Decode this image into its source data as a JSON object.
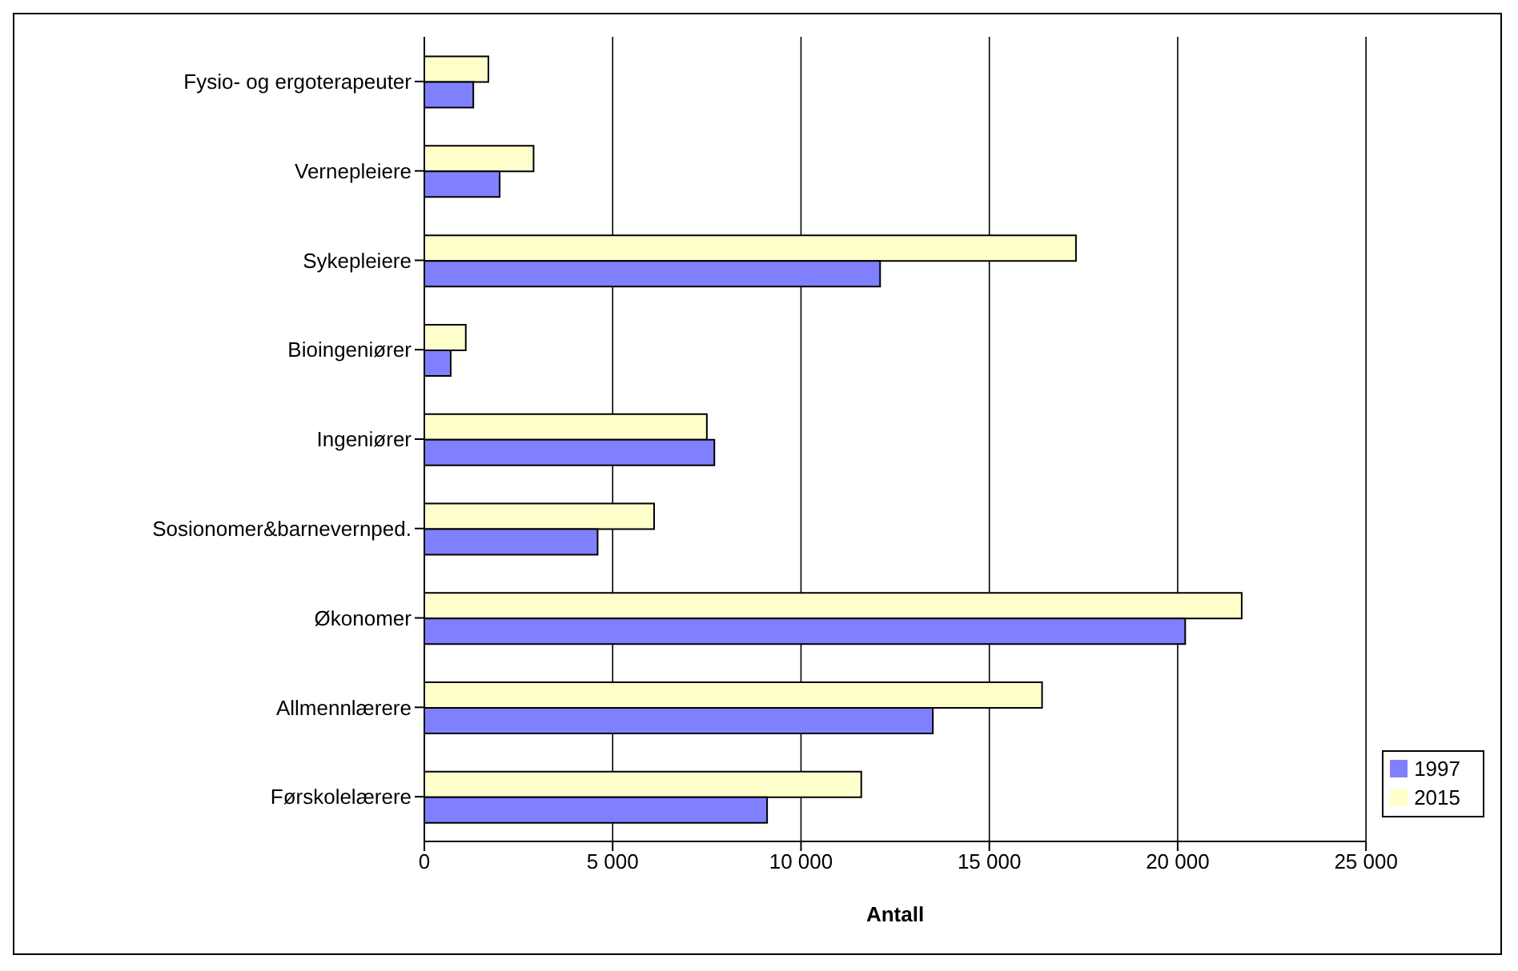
{
  "chart_data": {
    "type": "bar",
    "orientation": "horizontal",
    "xlabel": "Antall",
    "categories": [
      "Fysio- og ergoterapeuter",
      "Vernepleiere",
      "Sykepleiere",
      "Bioingeniører",
      "Ingeniører",
      "Sosionomer&barnevernped.",
      "Økonomer",
      "Allmennlærere",
      "Førskolelærere"
    ],
    "series": [
      {
        "name": "2015",
        "color": "#ffffcc",
        "values": [
          1700,
          2900,
          17300,
          1100,
          7500,
          6100,
          21700,
          16400,
          11600
        ]
      },
      {
        "name": "1997",
        "color": "#8080ff",
        "values": [
          1300,
          2000,
          12100,
          700,
          7700,
          4600,
          20200,
          13500,
          9100
        ]
      }
    ],
    "xlim": [
      0,
      25000
    ],
    "xticks": [
      0,
      {
        "value": 5000,
        "label": "5 000"
      },
      {
        "value": 10000,
        "label": "10 000"
      },
      {
        "value": 15000,
        "label": "15 000"
      },
      {
        "value": 20000,
        "label": "20 000"
      },
      {
        "value": 25000,
        "label": "25 000"
      }
    ],
    "grid": "x",
    "legend": "right"
  }
}
